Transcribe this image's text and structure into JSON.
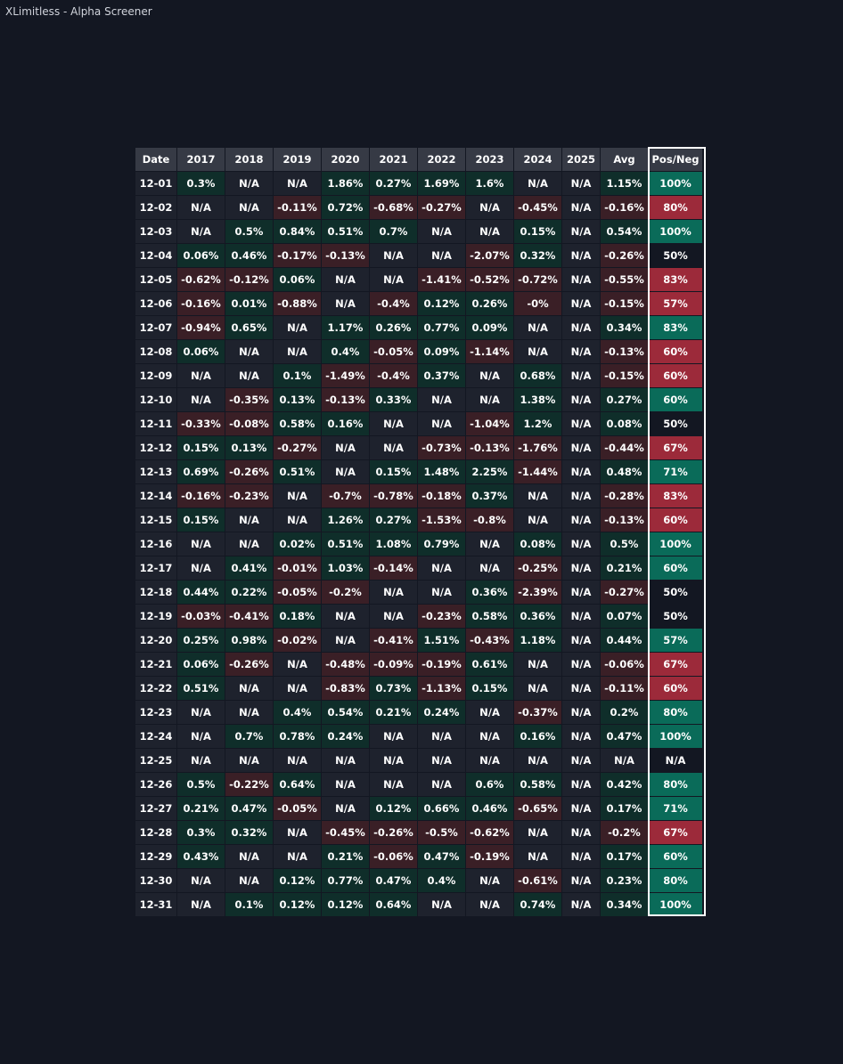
{
  "window": {
    "title": "XLimitless - Alpha Screener"
  },
  "table": {
    "headers": [
      "Date",
      "2017",
      "2018",
      "2019",
      "2020",
      "2021",
      "2022",
      "2023",
      "2024",
      "2025",
      "Avg",
      "Pos/Neg"
    ],
    "rows": [
      [
        "12-01",
        "0.3%",
        "N/A",
        "N/A",
        "1.86%",
        "0.27%",
        "1.69%",
        "1.6%",
        "N/A",
        "N/A",
        "1.15%",
        "100%"
      ],
      [
        "12-02",
        "N/A",
        "N/A",
        "-0.11%",
        "0.72%",
        "-0.68%",
        "-0.27%",
        "N/A",
        "-0.45%",
        "N/A",
        "-0.16%",
        "80%"
      ],
      [
        "12-03",
        "N/A",
        "0.5%",
        "0.84%",
        "0.51%",
        "0.7%",
        "N/A",
        "N/A",
        "0.15%",
        "N/A",
        "0.54%",
        "100%"
      ],
      [
        "12-04",
        "0.06%",
        "0.46%",
        "-0.17%",
        "-0.13%",
        "N/A",
        "N/A",
        "-2.07%",
        "0.32%",
        "N/A",
        "-0.26%",
        "50%"
      ],
      [
        "12-05",
        "-0.62%",
        "-0.12%",
        "0.06%",
        "N/A",
        "N/A",
        "-1.41%",
        "-0.52%",
        "-0.72%",
        "N/A",
        "-0.55%",
        "83%"
      ],
      [
        "12-06",
        "-0.16%",
        "0.01%",
        "-0.88%",
        "N/A",
        "-0.4%",
        "0.12%",
        "0.26%",
        "-0%",
        "N/A",
        "-0.15%",
        "57%"
      ],
      [
        "12-07",
        "-0.94%",
        "0.65%",
        "N/A",
        "1.17%",
        "0.26%",
        "0.77%",
        "0.09%",
        "N/A",
        "N/A",
        "0.34%",
        "83%"
      ],
      [
        "12-08",
        "0.06%",
        "N/A",
        "N/A",
        "0.4%",
        "-0.05%",
        "0.09%",
        "-1.14%",
        "N/A",
        "N/A",
        "-0.13%",
        "60%"
      ],
      [
        "12-09",
        "N/A",
        "N/A",
        "0.1%",
        "-1.49%",
        "-0.4%",
        "0.37%",
        "N/A",
        "0.68%",
        "N/A",
        "-0.15%",
        "60%"
      ],
      [
        "12-10",
        "N/A",
        "-0.35%",
        "0.13%",
        "-0.13%",
        "0.33%",
        "N/A",
        "N/A",
        "1.38%",
        "N/A",
        "0.27%",
        "60%"
      ],
      [
        "12-11",
        "-0.33%",
        "-0.08%",
        "0.58%",
        "0.16%",
        "N/A",
        "N/A",
        "-1.04%",
        "1.2%",
        "N/A",
        "0.08%",
        "50%"
      ],
      [
        "12-12",
        "0.15%",
        "0.13%",
        "-0.27%",
        "N/A",
        "N/A",
        "-0.73%",
        "-0.13%",
        "-1.76%",
        "N/A",
        "-0.44%",
        "67%"
      ],
      [
        "12-13",
        "0.69%",
        "-0.26%",
        "0.51%",
        "N/A",
        "0.15%",
        "1.48%",
        "2.25%",
        "-1.44%",
        "N/A",
        "0.48%",
        "71%"
      ],
      [
        "12-14",
        "-0.16%",
        "-0.23%",
        "N/A",
        "-0.7%",
        "-0.78%",
        "-0.18%",
        "0.37%",
        "N/A",
        "N/A",
        "-0.28%",
        "83%"
      ],
      [
        "12-15",
        "0.15%",
        "N/A",
        "N/A",
        "1.26%",
        "0.27%",
        "-1.53%",
        "-0.8%",
        "N/A",
        "N/A",
        "-0.13%",
        "60%"
      ],
      [
        "12-16",
        "N/A",
        "N/A",
        "0.02%",
        "0.51%",
        "1.08%",
        "0.79%",
        "N/A",
        "0.08%",
        "N/A",
        "0.5%",
        "100%"
      ],
      [
        "12-17",
        "N/A",
        "0.41%",
        "-0.01%",
        "1.03%",
        "-0.14%",
        "N/A",
        "N/A",
        "-0.25%",
        "N/A",
        "0.21%",
        "60%"
      ],
      [
        "12-18",
        "0.44%",
        "0.22%",
        "-0.05%",
        "-0.2%",
        "N/A",
        "N/A",
        "0.36%",
        "-2.39%",
        "N/A",
        "-0.27%",
        "50%"
      ],
      [
        "12-19",
        "-0.03%",
        "-0.41%",
        "0.18%",
        "N/A",
        "N/A",
        "-0.23%",
        "0.58%",
        "0.36%",
        "N/A",
        "0.07%",
        "50%"
      ],
      [
        "12-20",
        "0.25%",
        "0.98%",
        "-0.02%",
        "N/A",
        "-0.41%",
        "1.51%",
        "-0.43%",
        "1.18%",
        "N/A",
        "0.44%",
        "57%"
      ],
      [
        "12-21",
        "0.06%",
        "-0.26%",
        "N/A",
        "-0.48%",
        "-0.09%",
        "-0.19%",
        "0.61%",
        "N/A",
        "N/A",
        "-0.06%",
        "67%"
      ],
      [
        "12-22",
        "0.51%",
        "N/A",
        "N/A",
        "-0.83%",
        "0.73%",
        "-1.13%",
        "0.15%",
        "N/A",
        "N/A",
        "-0.11%",
        "60%"
      ],
      [
        "12-23",
        "N/A",
        "N/A",
        "0.4%",
        "0.54%",
        "0.21%",
        "0.24%",
        "N/A",
        "-0.37%",
        "N/A",
        "0.2%",
        "80%"
      ],
      [
        "12-24",
        "N/A",
        "0.7%",
        "0.78%",
        "0.24%",
        "N/A",
        "N/A",
        "N/A",
        "0.16%",
        "N/A",
        "0.47%",
        "100%"
      ],
      [
        "12-25",
        "N/A",
        "N/A",
        "N/A",
        "N/A",
        "N/A",
        "N/A",
        "N/A",
        "N/A",
        "N/A",
        "N/A",
        "N/A"
      ],
      [
        "12-26",
        "0.5%",
        "-0.22%",
        "0.64%",
        "N/A",
        "N/A",
        "N/A",
        "0.6%",
        "0.58%",
        "N/A",
        "0.42%",
        "80%"
      ],
      [
        "12-27",
        "0.21%",
        "0.47%",
        "-0.05%",
        "N/A",
        "0.12%",
        "0.66%",
        "0.46%",
        "-0.65%",
        "N/A",
        "0.17%",
        "71%"
      ],
      [
        "12-28",
        "0.3%",
        "0.32%",
        "N/A",
        "-0.45%",
        "-0.26%",
        "-0.5%",
        "-0.62%",
        "N/A",
        "N/A",
        "-0.2%",
        "67%"
      ],
      [
        "12-29",
        "0.43%",
        "N/A",
        "N/A",
        "0.21%",
        "-0.06%",
        "0.47%",
        "-0.19%",
        "N/A",
        "N/A",
        "0.17%",
        "60%"
      ],
      [
        "12-30",
        "N/A",
        "N/A",
        "0.12%",
        "0.77%",
        "0.47%",
        "0.4%",
        "N/A",
        "-0.61%",
        "N/A",
        "0.23%",
        "80%"
      ],
      [
        "12-31",
        "N/A",
        "0.1%",
        "0.12%",
        "0.12%",
        "0.64%",
        "N/A",
        "N/A",
        "0.74%",
        "N/A",
        "0.34%",
        "100%"
      ]
    ]
  },
  "colors": {
    "background": "#131722",
    "header_bg": "#363a45",
    "cell_positive": "#0f2e2a",
    "cell_negative": "#3a1f26",
    "cell_na": "#1e222d",
    "posneg_positive": "#0a6b59",
    "posneg_negative": "#9c2a3a",
    "posneg_neutral": "#131722",
    "posneg_outline": "#ffffff"
  }
}
